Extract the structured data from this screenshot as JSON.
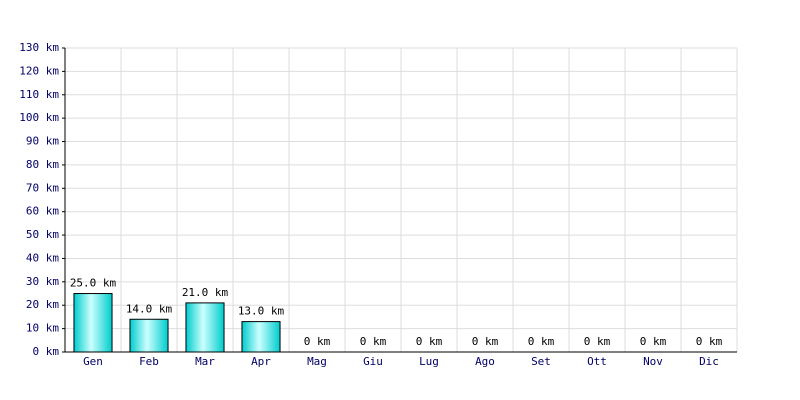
{
  "chart_data": {
    "type": "bar",
    "categories": [
      "Gen",
      "Feb",
      "Mar",
      "Apr",
      "Mag",
      "Giu",
      "Lug",
      "Ago",
      "Set",
      "Ott",
      "Nov",
      "Dic"
    ],
    "values": [
      25,
      14,
      21,
      13,
      0,
      0,
      0,
      0,
      0,
      0,
      0,
      0
    ],
    "value_labels": [
      "25.0 km",
      "14.0 km",
      "21.0 km",
      "13.0 km",
      "0 km",
      "0 km",
      "0 km",
      "0 km",
      "0 km",
      "0 km",
      "0 km",
      "0 km"
    ],
    "color": "#00cccc",
    "ylim": [
      0,
      130
    ],
    "yticks": [
      {
        "value": 0,
        "label": "0 km"
      },
      {
        "value": 10,
        "label": "10 km"
      },
      {
        "value": 20,
        "label": "20 km"
      },
      {
        "value": 30,
        "label": "30 km"
      },
      {
        "value": 40,
        "label": "40 km"
      },
      {
        "value": 50,
        "label": "50 km"
      },
      {
        "value": 60,
        "label": "60 km"
      },
      {
        "value": 70,
        "label": "70 km"
      },
      {
        "value": 80,
        "label": "80 km"
      },
      {
        "value": 90,
        "label": "90 km"
      },
      {
        "value": 100,
        "label": "100 km"
      },
      {
        "value": 110,
        "label": "110 km"
      },
      {
        "value": 120,
        "label": "120 km"
      },
      {
        "value": 130,
        "label": "130 km"
      }
    ],
    "grid": true
  }
}
